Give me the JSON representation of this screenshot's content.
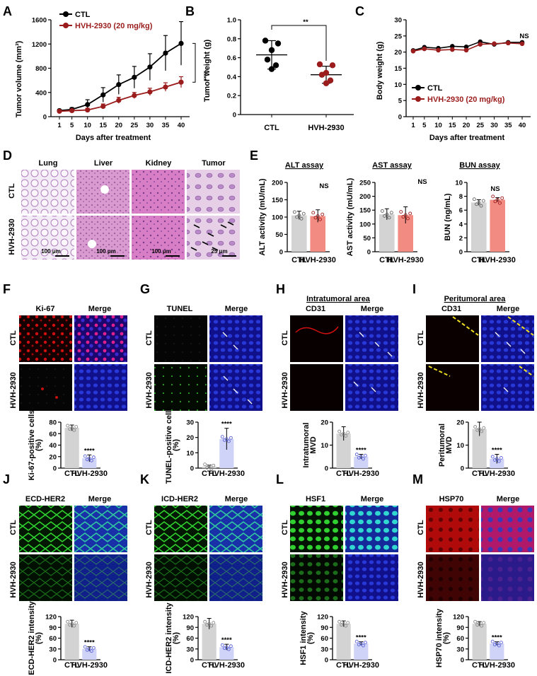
{
  "colors": {
    "ctl": "#000000",
    "hvh": "#9b1c1c",
    "gray_bar": "#d3d3d3",
    "red_bar": "#f28b82",
    "blue_bar": "#cfd3f7",
    "blue_dot": "#5b63d6",
    "purple": "#4a4fa8"
  },
  "panel_labels": {
    "A": "A",
    "B": "B",
    "C": "C",
    "D": "D",
    "E": "E",
    "F": "F",
    "G": "G",
    "H": "H",
    "I": "I",
    "J": "J",
    "K": "K",
    "L": "L",
    "M": "M"
  },
  "sig": {
    "A": "****",
    "B": "**",
    "C": "NS",
    "E_alt": "NS",
    "E_ast": "NS",
    "E_bun": "NS",
    "quad": "****"
  },
  "chart_data": [
    {
      "id": "A",
      "type": "line",
      "ylabel": "Tumor volume (mm³)",
      "xlabel": "Days after treatment",
      "x": [
        1,
        5,
        10,
        15,
        20,
        25,
        30,
        35,
        40
      ],
      "ylim": [
        0,
        1600
      ],
      "yticks": [
        "0",
        "400",
        "800",
        "1200",
        "1600"
      ],
      "xticks": [
        "1",
        "5",
        "10",
        "15",
        "20",
        "25",
        "30",
        "35",
        "40"
      ],
      "series": [
        {
          "name": "CTL",
          "values": [
            100,
            120,
            200,
            360,
            530,
            650,
            820,
            1050,
            1210
          ],
          "err": [
            20,
            30,
            80,
            120,
            160,
            180,
            220,
            290,
            360
          ]
        },
        {
          "name": "HVH-2930 (20 mg/kg)",
          "values": [
            90,
            100,
            110,
            170,
            270,
            350,
            410,
            490,
            570
          ],
          "err": [
            15,
            20,
            30,
            40,
            50,
            50,
            60,
            70,
            90
          ]
        }
      ]
    },
    {
      "id": "B",
      "type": "scatter",
      "ylabel": "Tumor weight (g)",
      "categories": [
        "CTL",
        "HVH-2930"
      ],
      "ylim": [
        0,
        1.0
      ],
      "yticks": [
        "0",
        "0.2",
        "0.4",
        "0.6",
        "0.8",
        "1.0"
      ],
      "series": [
        {
          "name": "CTL",
          "mean": 0.63,
          "sd": 0.15,
          "points": [
            0.78,
            0.75,
            0.68,
            0.58,
            0.52,
            0.48
          ]
        },
        {
          "name": "HVH-2930",
          "mean": 0.42,
          "sd": 0.09,
          "points": [
            0.53,
            0.52,
            0.44,
            0.42,
            0.36,
            0.33
          ]
        }
      ]
    },
    {
      "id": "C",
      "type": "line",
      "ylabel": "Body weight (g)",
      "xlabel": "Days after treatment",
      "x": [
        1,
        5,
        10,
        15,
        20,
        25,
        30,
        35,
        40
      ],
      "ylim": [
        0,
        30
      ],
      "yticks": [
        "0",
        "5",
        "10",
        "15",
        "20",
        "25",
        "30"
      ],
      "xticks": [
        "1",
        "5",
        "10",
        "15",
        "20",
        "25",
        "30",
        "35",
        "40"
      ],
      "series": [
        {
          "name": "CTL",
          "values": [
            20.5,
            21.5,
            21.2,
            21.8,
            21.6,
            23.2,
            22.4,
            23.0,
            23.0
          ]
        },
        {
          "name": "HVH-2930 (20 mg/kg)",
          "values": [
            20.3,
            21.0,
            20.6,
            20.8,
            20.6,
            22.4,
            22.6,
            22.8,
            22.6
          ]
        }
      ]
    },
    {
      "id": "E1",
      "type": "bar",
      "title": "ALT assay",
      "ylabel": "ALT activity (mU/mL)",
      "categories": [
        "CTL",
        "HVH-2930"
      ],
      "values": [
        105,
        103
      ],
      "err": [
        12,
        18
      ],
      "ylim": [
        0,
        200
      ],
      "yticks": [
        "0",
        "50",
        "100",
        "150",
        "200"
      ]
    },
    {
      "id": "E2",
      "type": "bar",
      "title": "AST assay",
      "ylabel": "AST activity (mU/mL)",
      "categories": [
        "CTL",
        "HVH-2930"
      ],
      "values": [
        135,
        132
      ],
      "err": [
        20,
        30
      ],
      "ylim": [
        0,
        250
      ],
      "yticks": [
        "0",
        "50",
        "100",
        "150",
        "200",
        "250"
      ]
    },
    {
      "id": "E3",
      "type": "bar",
      "title": "BUN assay",
      "ylabel": "BUN (ng/mL)",
      "categories": [
        "CTL",
        "HVH-2930"
      ],
      "values": [
        7.1,
        7.5
      ],
      "err": [
        0.4,
        0.3
      ],
      "ylim": [
        0,
        10
      ],
      "yticks": [
        "0",
        "2",
        "4",
        "6",
        "8",
        "10"
      ]
    },
    {
      "id": "F",
      "type": "bar",
      "ylabel": "Ki-67-positive cells (%)",
      "categories": [
        "CTL",
        "HVH-2930"
      ],
      "values": [
        70,
        17
      ],
      "err": [
        5,
        6
      ],
      "ylim": [
        0,
        80
      ],
      "yticks": [
        "0",
        "20",
        "40",
        "60",
        "80"
      ]
    },
    {
      "id": "G",
      "type": "bar",
      "ylabel": "TUNEL-positive cells (%)",
      "categories": [
        "CTL",
        "HVH-2930"
      ],
      "values": [
        1,
        19
      ],
      "err": [
        1,
        7
      ],
      "ylim": [
        0,
        30
      ],
      "yticks": [
        "0",
        "10",
        "20",
        "30"
      ]
    },
    {
      "id": "H",
      "type": "bar",
      "ylabel": "Intratumoral MVD",
      "categories": [
        "CTL",
        "HVH-2930"
      ],
      "values": [
        15,
        5
      ],
      "err": [
        3,
        1
      ],
      "ylim": [
        0,
        20
      ],
      "yticks": [
        "0",
        "10",
        "20"
      ]
    },
    {
      "id": "I",
      "type": "bar",
      "ylabel": "Peritumoral MVD",
      "categories": [
        "CTL",
        "HVH-2930"
      ],
      "values": [
        17,
        4
      ],
      "err": [
        3,
        2
      ],
      "ylim": [
        0,
        20
      ],
      "yticks": [
        "0",
        "10",
        "20"
      ]
    },
    {
      "id": "J",
      "type": "bar",
      "ylabel": "ECD-HER2 intensity (%)",
      "categories": [
        "CTL",
        "HVH-2930"
      ],
      "values": [
        100,
        30
      ],
      "err": [
        10,
        6
      ],
      "ylim": [
        0,
        120
      ],
      "yticks": [
        "0",
        "30",
        "60",
        "90",
        "120"
      ]
    },
    {
      "id": "K",
      "type": "bar",
      "ylabel": "ICD-HER2 intensity (%)",
      "categories": [
        "CTL",
        "HVH-2930"
      ],
      "values": [
        100,
        35
      ],
      "err": [
        15,
        8
      ],
      "ylim": [
        0,
        120
      ],
      "yticks": [
        "0",
        "30",
        "60",
        "90",
        "120"
      ]
    },
    {
      "id": "L",
      "type": "bar",
      "ylabel": "HSF1 intensity (%)",
      "categories": [
        "CTL",
        "HVH-2930"
      ],
      "values": [
        100,
        45
      ],
      "err": [
        8,
        5
      ],
      "ylim": [
        0,
        120
      ],
      "yticks": [
        "0",
        "30",
        "60",
        "90",
        "120"
      ]
    },
    {
      "id": "M",
      "type": "bar",
      "ylabel": "HSP70 intensity (%)",
      "categories": [
        "CTL",
        "HVH-2930"
      ],
      "values": [
        100,
        45
      ],
      "err": [
        6,
        5
      ],
      "ylim": [
        0,
        120
      ],
      "yticks": [
        "0",
        "30",
        "60",
        "90",
        "120"
      ]
    }
  ],
  "legend": {
    "ctl": "CTL",
    "hvh": "HVH-2930 (20 mg/kg)"
  },
  "histology": {
    "cols": [
      "Lung",
      "Liver",
      "Kidney",
      "Tumor"
    ],
    "rows": [
      "CTL",
      "HVH-2930"
    ],
    "scale": [
      "100 μm",
      "100 μm",
      "100 μm",
      "25 μm"
    ]
  },
  "if_panels": {
    "F": {
      "stain": "Ki-67",
      "merge": "Merge"
    },
    "G": {
      "stain": "TUNEL",
      "merge": "Merge"
    },
    "H": {
      "title": "Intratumoral area",
      "stain": "CD31",
      "merge": "Merge"
    },
    "I": {
      "title": "Peritumoral area",
      "stain": "CD31",
      "merge": "Merge"
    },
    "J": {
      "stain": "ECD-HER2",
      "merge": "Merge"
    },
    "K": {
      "stain": "ICD-HER2",
      "merge": "Merge"
    },
    "L": {
      "stain": "HSF1",
      "merge": "Merge"
    },
    "M": {
      "stain": "HSP70",
      "merge": "Merge"
    }
  },
  "row_labels": {
    "ctl": "CTL",
    "hvh": "HVH-2930"
  }
}
